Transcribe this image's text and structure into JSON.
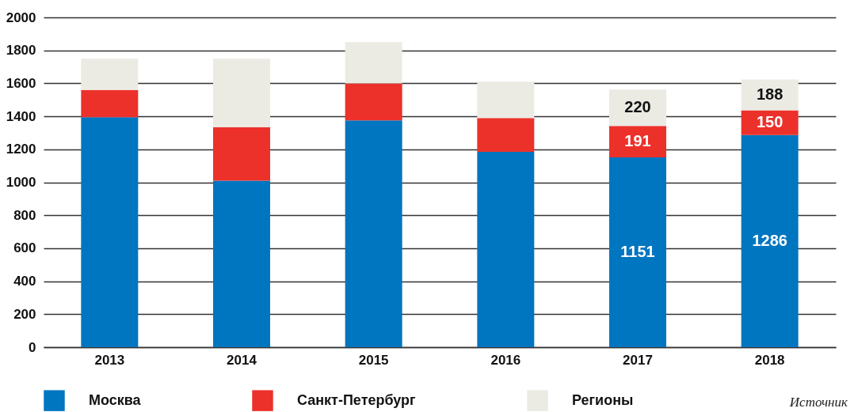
{
  "chart_data": {
    "type": "bar",
    "stacked": true,
    "categories": [
      "2013",
      "2014",
      "2015",
      "2016",
      "2017",
      "2018"
    ],
    "series": [
      {
        "name": "Москва",
        "color": "#0075c0",
        "values": [
          1395,
          1010,
          1375,
          1185,
          1151,
          1286
        ],
        "value_labels": [
          null,
          null,
          null,
          null,
          "1151",
          "1286"
        ]
      },
      {
        "name": "Санкт-Петербург",
        "color": "#ec312a",
        "values": [
          165,
          325,
          225,
          205,
          191,
          150
        ],
        "value_labels": [
          null,
          null,
          null,
          null,
          "191",
          "150"
        ]
      },
      {
        "name": "Регионы",
        "color": "#ebebe4",
        "values": [
          190,
          415,
          250,
          220,
          220,
          188
        ],
        "value_labels": [
          null,
          null,
          null,
          null,
          "220",
          "188"
        ]
      }
    ],
    "ylim": [
      0,
      2000
    ],
    "yticks": [
      0,
      200,
      400,
      600,
      800,
      1000,
      1200,
      1400,
      1600,
      1800,
      2000
    ],
    "grid": "y",
    "legend": "bottom",
    "annotations": [
      "Источник"
    ]
  }
}
